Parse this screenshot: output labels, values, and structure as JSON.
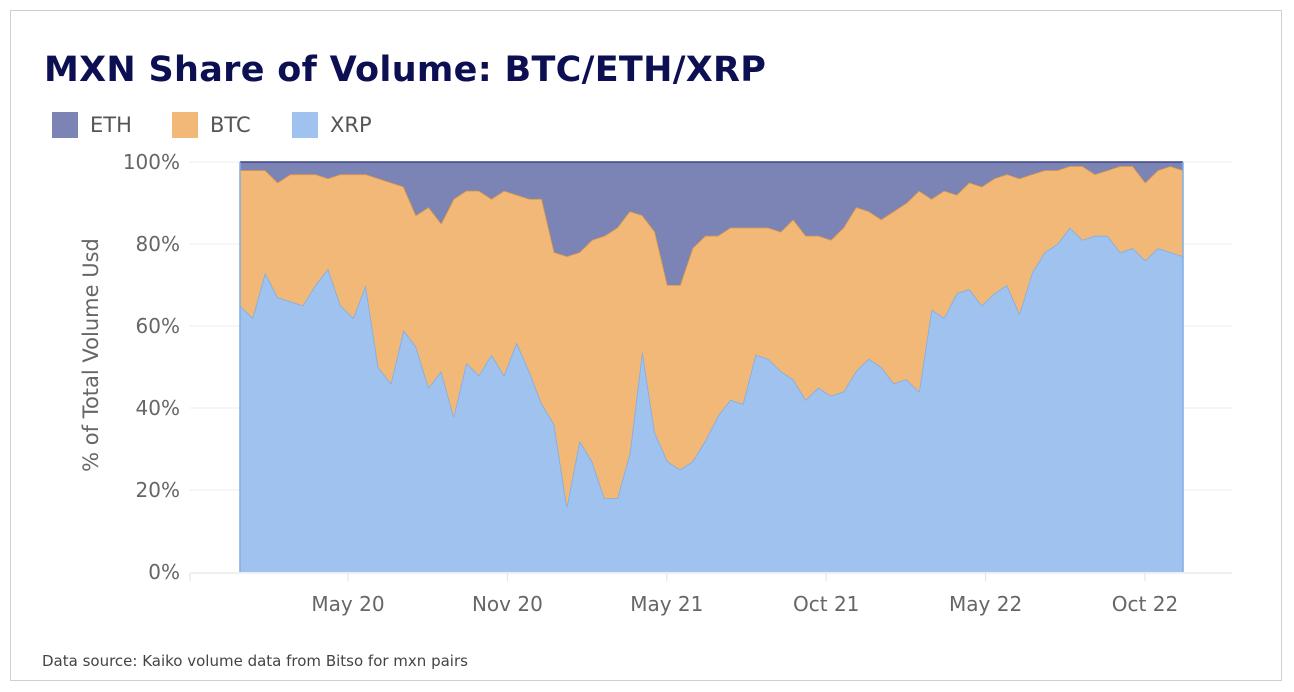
{
  "chart_data": {
    "type": "area",
    "stacked": true,
    "title": "MXN Share of Volume: BTC/ETH/XRP",
    "ylabel": "% of Total Volume Usd",
    "xlabel": "",
    "ylim": [
      0,
      100
    ],
    "y_ticks": [
      "0%",
      "20%",
      "40%",
      "60%",
      "80%",
      "100%"
    ],
    "x_ticks": [
      "May 20",
      "Nov 20",
      "May 21",
      "Oct 21",
      "May 22",
      "Oct 22"
    ],
    "grid": true,
    "legend": "top-left",
    "x": [
      "2020-01-02",
      "2020-01-16",
      "2020-01-30",
      "2020-02-13",
      "2020-02-27",
      "2020-03-12",
      "2020-03-26",
      "2020-04-09",
      "2020-04-23",
      "2020-05-07",
      "2020-05-21",
      "2020-06-04",
      "2020-06-18",
      "2020-07-02",
      "2020-07-16",
      "2020-07-30",
      "2020-08-13",
      "2020-08-27",
      "2020-09-10",
      "2020-09-24",
      "2020-10-08",
      "2020-10-22",
      "2020-11-05",
      "2020-11-19",
      "2020-12-03",
      "2020-12-17",
      "2020-12-31",
      "2021-01-14",
      "2021-01-28",
      "2021-02-11",
      "2021-02-25",
      "2021-03-11",
      "2021-03-25",
      "2021-04-08",
      "2021-04-22",
      "2021-05-06",
      "2021-05-20",
      "2021-06-03",
      "2021-06-17",
      "2021-07-01",
      "2021-07-15",
      "2021-07-29",
      "2021-08-12",
      "2021-08-26",
      "2021-09-09",
      "2021-09-23",
      "2021-10-07",
      "2021-10-21",
      "2021-11-04",
      "2021-11-18",
      "2021-12-02",
      "2021-12-16",
      "2021-12-30",
      "2022-01-13",
      "2022-01-27",
      "2022-02-10",
      "2022-02-24",
      "2022-03-10",
      "2022-03-24",
      "2022-04-07",
      "2022-04-21",
      "2022-05-05",
      "2022-05-19",
      "2022-06-02",
      "2022-06-16",
      "2022-06-30",
      "2022-07-14",
      "2022-07-28",
      "2022-08-11",
      "2022-08-25",
      "2022-09-08",
      "2022-09-22",
      "2022-10-06",
      "2022-10-20",
      "2022-11-03",
      "2022-11-17"
    ],
    "series": [
      {
        "name": "XRP",
        "color": "#9fc2ee",
        "line": "#7eaee8",
        "values": [
          65,
          62,
          73,
          67,
          66,
          65,
          70,
          74,
          65,
          62,
          70,
          50,
          46,
          59,
          55,
          45,
          49,
          38,
          51,
          48,
          53,
          48,
          56,
          49,
          41,
          36,
          16,
          32,
          27,
          18,
          18,
          29,
          54,
          34,
          27,
          25,
          27,
          32,
          38,
          42,
          41,
          53,
          52,
          49,
          47,
          42,
          45,
          43,
          44,
          49,
          52,
          50,
          46,
          47,
          44,
          64,
          62,
          68,
          69,
          65,
          68,
          70,
          63,
          73,
          78,
          80,
          84,
          81,
          82,
          82,
          78,
          79,
          76,
          79,
          78,
          77
        ]
      },
      {
        "name": "BTC",
        "color": "#f2b877",
        "line": "#e09a45",
        "values": [
          33,
          36,
          25,
          28,
          31,
          32,
          27,
          22,
          32,
          35,
          27,
          46,
          49,
          35,
          32,
          44,
          36,
          53,
          42,
          45,
          38,
          45,
          36,
          42,
          50,
          42,
          61,
          46,
          54,
          64,
          66,
          59,
          33,
          49,
          43,
          45,
          52,
          50,
          44,
          42,
          43,
          31,
          32,
          34,
          39,
          40,
          37,
          38,
          40,
          40,
          36,
          36,
          42,
          43,
          49,
          27,
          31,
          24,
          26,
          29,
          28,
          27,
          33,
          24,
          20,
          18,
          15,
          18,
          15,
          16,
          21,
          20,
          19,
          19,
          21,
          21
        ]
      },
      {
        "name": "ETH",
        "color": "#7b84b4",
        "line": "#3d4585",
        "values": [
          2,
          2,
          2,
          5,
          3,
          3,
          3,
          4,
          3,
          3,
          3,
          4,
          5,
          6,
          13,
          11,
          15,
          9,
          7,
          7,
          9,
          7,
          8,
          9,
          9,
          22,
          23,
          22,
          19,
          18,
          16,
          12,
          13,
          17,
          30,
          30,
          21,
          18,
          18,
          16,
          16,
          16,
          16,
          17,
          14,
          18,
          18,
          19,
          16,
          11,
          12,
          14,
          12,
          10,
          7,
          9,
          7,
          8,
          5,
          6,
          4,
          3,
          4,
          3,
          2,
          2,
          1,
          1,
          3,
          2,
          1,
          1,
          5,
          2,
          1,
          2
        ]
      }
    ]
  },
  "source_note": "Data source: Kaiko volume data from Bitso for mxn pairs"
}
